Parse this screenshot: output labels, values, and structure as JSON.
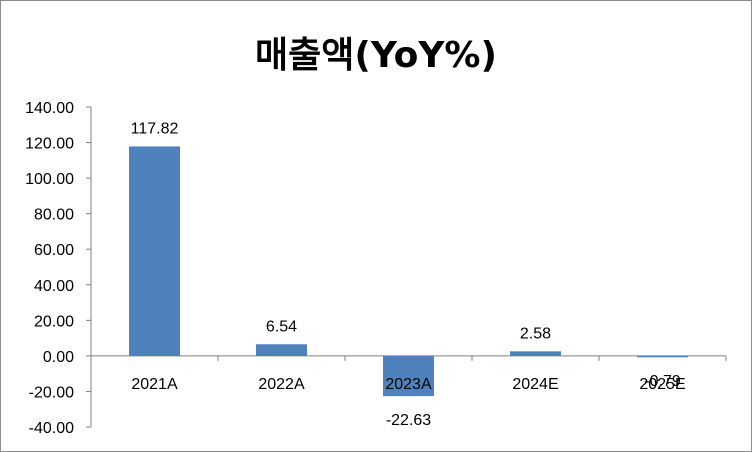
{
  "chart_data": {
    "type": "bar",
    "title": "매출액(YoY%)",
    "categories": [
      "2021A",
      "2022A",
      "2023A",
      "2024E",
      "2025E"
    ],
    "values": [
      117.82,
      6.54,
      -22.63,
      2.58,
      -0.79
    ],
    "data_labels": [
      "117.82",
      "6.54",
      "-22.63",
      "2.58",
      "-0.79"
    ],
    "ylim": [
      -40,
      140
    ],
    "y_ticks": [
      "140.00",
      "120.00",
      "100.00",
      "80.00",
      "60.00",
      "40.00",
      "20.00",
      "0.00",
      "-20.00",
      "-40.00"
    ],
    "y_tick_values": [
      140,
      120,
      100,
      80,
      60,
      40,
      20,
      0,
      -20,
      -40
    ],
    "grid": false,
    "legend": "none",
    "colors": {
      "bar": "#4f81bd",
      "axis": "#808080"
    }
  }
}
